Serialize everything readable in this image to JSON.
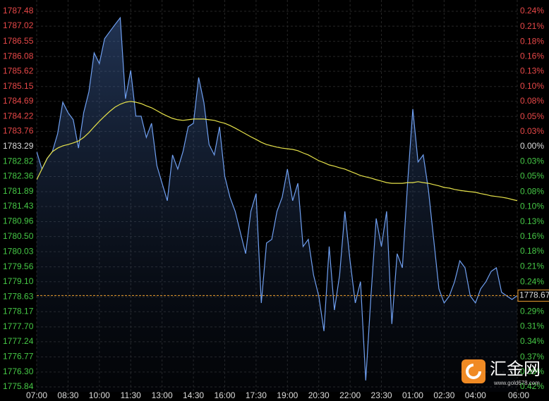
{
  "chart_data": {
    "type": "line",
    "categories": [
      "07:00",
      null,
      null,
      null,
      null,
      null,
      "08:30",
      null,
      null,
      null,
      null,
      null,
      "10:00",
      null,
      null,
      null,
      null,
      null,
      "11:30",
      null,
      null,
      null,
      null,
      null,
      "13:00",
      null,
      null,
      null,
      null,
      null,
      "14:30",
      null,
      null,
      null,
      null,
      null,
      "16:00",
      null,
      null,
      null,
      null,
      null,
      "17:30",
      null,
      null,
      null,
      null,
      null,
      "19:00",
      null,
      null,
      null,
      null,
      null,
      "20:30",
      null,
      null,
      null,
      null,
      null,
      "22:00",
      null,
      null,
      null,
      null,
      null,
      "23:30",
      null,
      null,
      null,
      null,
      null,
      "01:00",
      null,
      null,
      null,
      null,
      null,
      "02:30",
      null,
      null,
      null,
      null,
      null,
      "04:00",
      null,
      null,
      null,
      null,
      null,
      null,
      null,
      "06:00"
    ],
    "series": [
      {
        "color": "#6f9ff0",
        "area": true,
        "values": [
          1783.13,
          1782.59,
          1782.92,
          1783.13,
          1783.68,
          1784.66,
          1784.34,
          1784.12,
          1783.24,
          1784.34,
          1784.99,
          1786.19,
          1785.86,
          1786.63,
          1786.85,
          1787.07,
          1787.28,
          1784.77,
          1785.65,
          1784.23,
          1784.23,
          1783.57,
          1784.01,
          1782.7,
          1782.15,
          1781.61,
          1783.03,
          1782.59,
          1783.13,
          1783.9,
          1784.01,
          1785.43,
          1784.66,
          1783.35,
          1783.03,
          1783.9,
          1782.37,
          1781.72,
          1781.28,
          1780.62,
          1779.97,
          1781.28,
          1781.83,
          1778.44,
          1780.3,
          1780.41,
          1781.28,
          1781.72,
          1782.59,
          1781.61,
          1782.15,
          1780.19,
          1780.41,
          1779.31,
          1778.66,
          1777.57,
          1780.19,
          1778.22,
          1779.31,
          1781.28,
          1779.75,
          1778.44,
          1779.1,
          1776.04,
          1778.66,
          1781.06,
          1780.19,
          1781.28,
          1777.79,
          1779.97,
          1779.53,
          1782.15,
          1784.45,
          1782.81,
          1783.03,
          1781.93,
          1780.41,
          1778.88,
          1778.44,
          1778.66,
          1779.1,
          1779.75,
          1779.53,
          1778.66,
          1778.44,
          1778.88,
          1779.1,
          1779.42,
          1779.53,
          1778.77,
          1778.66,
          1778.55,
          1778.67
        ]
      },
      {
        "color": "#e6e24a",
        "area": false,
        "values": [
          1782.26,
          1782.59,
          1782.92,
          1783.13,
          1783.24,
          1783.31,
          1783.35,
          1783.4,
          1783.46,
          1783.57,
          1783.72,
          1783.9,
          1784.07,
          1784.23,
          1784.38,
          1784.51,
          1784.6,
          1784.66,
          1784.69,
          1784.66,
          1784.62,
          1784.55,
          1784.49,
          1784.4,
          1784.31,
          1784.23,
          1784.16,
          1784.12,
          1784.1,
          1784.12,
          1784.14,
          1784.14,
          1784.14,
          1784.12,
          1784.1,
          1784.05,
          1784.01,
          1783.94,
          1783.86,
          1783.77,
          1783.68,
          1783.59,
          1783.51,
          1783.42,
          1783.35,
          1783.31,
          1783.27,
          1783.24,
          1783.22,
          1783.2,
          1783.16,
          1783.09,
          1783.03,
          1782.94,
          1782.85,
          1782.79,
          1782.72,
          1782.68,
          1782.63,
          1782.59,
          1782.52,
          1782.46,
          1782.39,
          1782.35,
          1782.31,
          1782.26,
          1782.22,
          1782.17,
          1782.15,
          1782.15,
          1782.15,
          1782.17,
          1782.17,
          1782.2,
          1782.17,
          1782.15,
          1782.11,
          1782.07,
          1782.02,
          1782.0,
          1781.96,
          1781.93,
          1781.91,
          1781.89,
          1781.87,
          1781.83,
          1781.8,
          1781.76,
          1781.74,
          1781.72,
          1781.69,
          1781.65,
          1781.61
        ]
      }
    ],
    "ylim": [
      1775.84,
      1787.48
    ],
    "yticks": [
      {
        "value": 1787.48,
        "label": "1787.48"
      },
      {
        "value": 1787.02,
        "label": "1787.02"
      },
      {
        "value": 1786.55,
        "label": "1786.55"
      },
      {
        "value": 1786.08,
        "label": "1786.08"
      },
      {
        "value": 1785.62,
        "label": "1785.62"
      },
      {
        "value": 1785.15,
        "label": "1785.15"
      },
      {
        "value": 1784.69,
        "label": "1784.69"
      },
      {
        "value": 1784.22,
        "label": "1784.22"
      },
      {
        "value": 1783.76,
        "label": "1783.76"
      },
      {
        "value": 1783.29,
        "label": "1783.29"
      },
      {
        "value": 1782.82,
        "label": "1782.82"
      },
      {
        "value": 1782.36,
        "label": "1782.36"
      },
      {
        "value": 1781.89,
        "label": "1781.89"
      },
      {
        "value": 1781.43,
        "label": "1781.43"
      },
      {
        "value": 1780.96,
        "label": "1780.96"
      },
      {
        "value": 1780.5,
        "label": "1780.50"
      },
      {
        "value": 1780.03,
        "label": "1780.03"
      },
      {
        "value": 1779.56,
        "label": "1779.56"
      },
      {
        "value": 1779.1,
        "label": "1779.10"
      },
      {
        "value": 1778.63,
        "label": "1778.63"
      },
      {
        "value": 1778.17,
        "label": "1778.17"
      },
      {
        "value": 1777.7,
        "label": "1777.70"
      },
      {
        "value": 1777.24,
        "label": "1777.24"
      },
      {
        "value": 1776.77,
        "label": "1776.77"
      },
      {
        "value": 1776.3,
        "label": "1776.30"
      },
      {
        "value": 1775.84,
        "label": "1775.84"
      }
    ],
    "reference_value": 1783.29,
    "y2lim": [
      -0.419,
      0.236
    ],
    "y2ticks": [
      {
        "value": 0.236,
        "label": "0.24%"
      },
      {
        "value": 0.209,
        "label": "0.21%"
      },
      {
        "value": 0.183,
        "label": "0.18%"
      },
      {
        "value": 0.157,
        "label": "0.16%"
      },
      {
        "value": 0.131,
        "label": "0.13%"
      },
      {
        "value": 0.105,
        "label": "0.10%"
      },
      {
        "value": 0.079,
        "label": "0.08%"
      },
      {
        "value": 0.052,
        "label": "0.05%"
      },
      {
        "value": 0.026,
        "label": "0.03%"
      },
      {
        "value": 0,
        "label": "0.00%"
      },
      {
        "value": -0.026,
        "label": "0.03%"
      },
      {
        "value": -0.052,
        "label": "0.05%"
      },
      {
        "value": -0.079,
        "label": "0.08%"
      },
      {
        "value": -0.105,
        "label": "0.10%"
      },
      {
        "value": -0.131,
        "label": "0.13%"
      },
      {
        "value": -0.157,
        "label": "0.16%"
      },
      {
        "value": -0.183,
        "label": "0.18%"
      },
      {
        "value": -0.209,
        "label": "0.21%"
      },
      {
        "value": -0.236,
        "label": "0.24%"
      },
      {
        "value": -0.262,
        "label": "0.26%"
      },
      {
        "value": -0.288,
        "label": "0.29%"
      },
      {
        "value": -0.314,
        "label": "0.31%"
      },
      {
        "value": -0.34,
        "label": "0.34%"
      },
      {
        "value": -0.367,
        "label": "0.37%"
      },
      {
        "value": -0.393,
        "label": "0.39%"
      },
      {
        "value": -0.419,
        "label": "0.42%"
      }
    ],
    "last_price": {
      "value": 1778.67,
      "label": "1778.67",
      "color": "#f0a030"
    },
    "grid": true,
    "up_color": "#e84848",
    "down_color": "#46c846",
    "flat_color": "#dddddd"
  },
  "brand": {
    "name": "汇金网",
    "url": "www.gold678.com"
  }
}
